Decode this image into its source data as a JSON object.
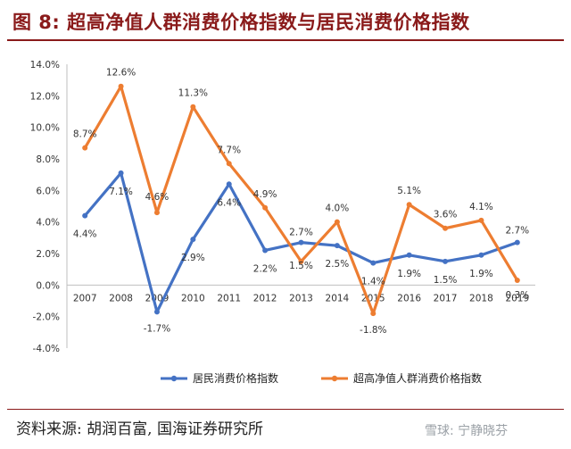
{
  "header": {
    "title": "图 8:  超高净值人群消费价格指数与居民消费价格指数"
  },
  "footer": {
    "source": "资料来源:  胡润百富, 国海证券研究所",
    "watermark": "雪球: 宁静晓芬"
  },
  "chart_data": {
    "type": "line",
    "title": "超高净值人群消费价格指数与居民消费价格指数",
    "xlabel": "",
    "ylabel": "",
    "categories": [
      "2007",
      "2008",
      "2009",
      "2010",
      "2011",
      "2012",
      "2013",
      "2014",
      "2015",
      "2016",
      "2017",
      "2018",
      "2019"
    ],
    "ylim": [
      -4.0,
      14.0
    ],
    "yticks": [
      -4.0,
      -2.0,
      0.0,
      2.0,
      4.0,
      6.0,
      8.0,
      10.0,
      12.0,
      14.0
    ],
    "ytick_labels": [
      "-4.0%",
      "-2.0%",
      "0.0%",
      "2.0%",
      "4.0%",
      "6.0%",
      "8.0%",
      "10.0%",
      "12.0%",
      "14.0%"
    ],
    "legend_position": "bottom",
    "series": [
      {
        "name": "居民消费价格指数",
        "color": "#4472c4",
        "values": [
          4.4,
          7.1,
          -1.7,
          2.9,
          6.4,
          2.2,
          2.7,
          2.5,
          1.4,
          1.9,
          1.5,
          1.9,
          2.7
        ],
        "labels": [
          "4.4%",
          "7.1%",
          "-1.7%",
          "2.9%",
          "6.4%",
          "2.2%",
          "2.7%",
          "2.5%",
          "1.4%",
          "1.9%",
          "1.5%",
          "1.9%",
          "2.7%"
        ]
      },
      {
        "name": "超高净值人群消费价格指数",
        "color": "#ed7d31",
        "values": [
          8.7,
          12.6,
          4.6,
          11.3,
          7.7,
          4.9,
          1.5,
          4.0,
          -1.8,
          5.1,
          3.6,
          4.1,
          0.3
        ],
        "labels": [
          "8.7%",
          "12.6%",
          "4.6%",
          "11.3%",
          "7.7%",
          "4.9%",
          "1.5%",
          "4.0%",
          "-1.8%",
          "5.1%",
          "3.6%",
          "4.1%",
          "0.3%"
        ]
      }
    ]
  }
}
